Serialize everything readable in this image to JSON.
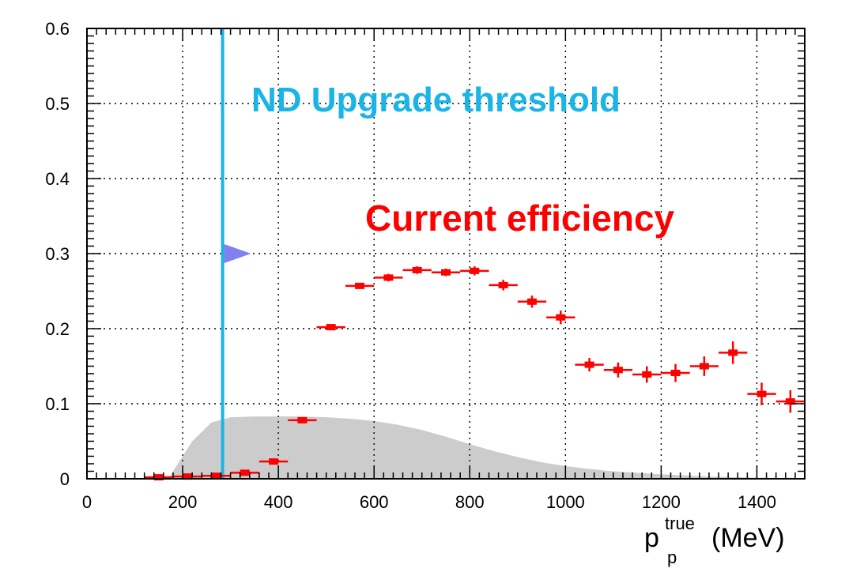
{
  "chart_data": {
    "type": "scatter",
    "xlim": [
      0,
      1500
    ],
    "ylim": [
      0,
      0.6
    ],
    "x_ticks": [
      0,
      200,
      400,
      600,
      800,
      1000,
      1200,
      1400
    ],
    "y_ticks": [
      0,
      0.1,
      0.2,
      0.3,
      0.4,
      0.5,
      0.6
    ],
    "x_tick_labels": [
      "0",
      "200",
      "400",
      "600",
      "800",
      "1000",
      "1200",
      "1400"
    ],
    "y_tick_labels": [
      "0",
      "0.1",
      "0.2",
      "0.3",
      "0.4",
      "0.5",
      "0.6"
    ],
    "grid": true,
    "xlabel": {
      "base": "p",
      "sub": "p",
      "sup": "true",
      "unit": "(MeV)"
    },
    "series": [
      {
        "name": "Current efficiency",
        "color": "#ff0000",
        "marker": "square",
        "points": [
          {
            "x": 150,
            "y": 0.002,
            "xerr": 30,
            "yerr": 0.003
          },
          {
            "x": 210,
            "y": 0.003,
            "xerr": 30,
            "yerr": 0.003
          },
          {
            "x": 270,
            "y": 0.004,
            "xerr": 30,
            "yerr": 0.003
          },
          {
            "x": 330,
            "y": 0.008,
            "xerr": 30,
            "yerr": 0.003
          },
          {
            "x": 390,
            "y": 0.023,
            "xerr": 30,
            "yerr": 0.004
          },
          {
            "x": 450,
            "y": 0.078,
            "xerr": 30,
            "yerr": 0.004
          },
          {
            "x": 510,
            "y": 0.202,
            "xerr": 30,
            "yerr": 0.004
          },
          {
            "x": 570,
            "y": 0.257,
            "xerr": 30,
            "yerr": 0.004
          },
          {
            "x": 630,
            "y": 0.268,
            "xerr": 30,
            "yerr": 0.005
          },
          {
            "x": 690,
            "y": 0.278,
            "xerr": 30,
            "yerr": 0.005
          },
          {
            "x": 750,
            "y": 0.275,
            "xerr": 30,
            "yerr": 0.005
          },
          {
            "x": 810,
            "y": 0.277,
            "xerr": 30,
            "yerr": 0.006
          },
          {
            "x": 870,
            "y": 0.258,
            "xerr": 30,
            "yerr": 0.007
          },
          {
            "x": 930,
            "y": 0.236,
            "xerr": 30,
            "yerr": 0.008
          },
          {
            "x": 990,
            "y": 0.215,
            "xerr": 30,
            "yerr": 0.009
          },
          {
            "x": 1050,
            "y": 0.152,
            "xerr": 30,
            "yerr": 0.009
          },
          {
            "x": 1110,
            "y": 0.145,
            "xerr": 30,
            "yerr": 0.01
          },
          {
            "x": 1170,
            "y": 0.139,
            "xerr": 30,
            "yerr": 0.011
          },
          {
            "x": 1230,
            "y": 0.141,
            "xerr": 30,
            "yerr": 0.012
          },
          {
            "x": 1290,
            "y": 0.15,
            "xerr": 30,
            "yerr": 0.013
          },
          {
            "x": 1350,
            "y": 0.168,
            "xerr": 30,
            "yerr": 0.015
          },
          {
            "x": 1410,
            "y": 0.113,
            "xerr": 30,
            "yerr": 0.015
          },
          {
            "x": 1470,
            "y": 0.103,
            "xerr": 30,
            "yerr": 0.015
          }
        ]
      }
    ],
    "background_distribution": {
      "color": "#cccccc",
      "points": [
        {
          "x": 170,
          "y": 0
        },
        {
          "x": 190,
          "y": 0.02
        },
        {
          "x": 220,
          "y": 0.05
        },
        {
          "x": 260,
          "y": 0.075
        },
        {
          "x": 300,
          "y": 0.082
        },
        {
          "x": 350,
          "y": 0.083
        },
        {
          "x": 400,
          "y": 0.083
        },
        {
          "x": 450,
          "y": 0.083
        },
        {
          "x": 500,
          "y": 0.082
        },
        {
          "x": 550,
          "y": 0.08
        },
        {
          "x": 600,
          "y": 0.077
        },
        {
          "x": 650,
          "y": 0.072
        },
        {
          "x": 700,
          "y": 0.065
        },
        {
          "x": 750,
          "y": 0.056
        },
        {
          "x": 800,
          "y": 0.046
        },
        {
          "x": 850,
          "y": 0.037
        },
        {
          "x": 900,
          "y": 0.029
        },
        {
          "x": 950,
          "y": 0.022
        },
        {
          "x": 1000,
          "y": 0.017
        },
        {
          "x": 1050,
          "y": 0.013
        },
        {
          "x": 1100,
          "y": 0.01
        },
        {
          "x": 1150,
          "y": 0.008
        },
        {
          "x": 1200,
          "y": 0.006
        },
        {
          "x": 1300,
          "y": 0.003
        },
        {
          "x": 1400,
          "y": 0.0015
        },
        {
          "x": 1500,
          "y": 0.001
        }
      ]
    },
    "annotations": [
      {
        "text": "ND Upgrade threshold",
        "color": "#1ab4e6"
      },
      {
        "text": "Current efficiency",
        "color": "#ff0000"
      }
    ],
    "threshold_line": {
      "x": 300,
      "color": "#1ab4e6"
    },
    "threshold_arrow": {
      "x": 300,
      "y": 0.3,
      "color": "#8080ee"
    }
  }
}
